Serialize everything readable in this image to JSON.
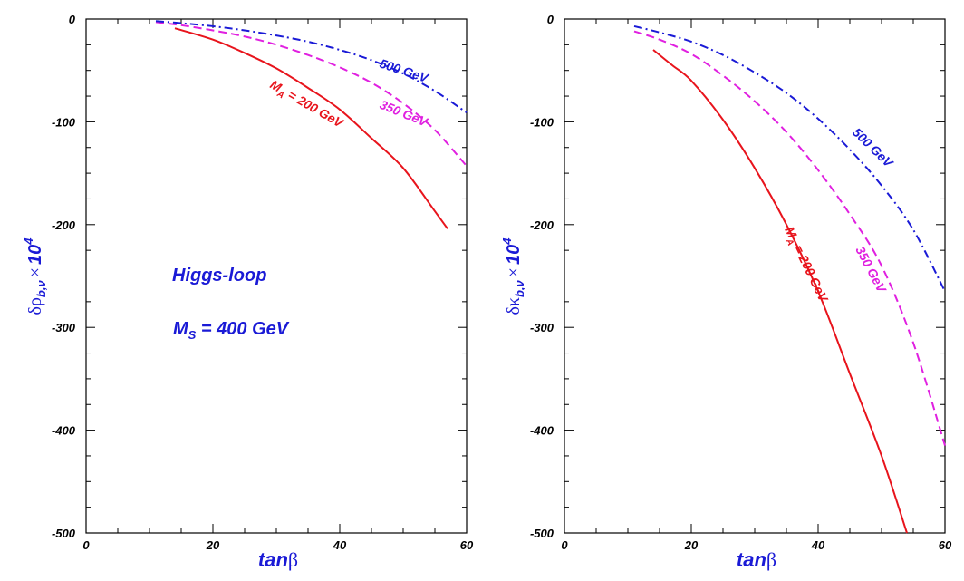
{
  "chart_data": [
    {
      "type": "line",
      "xlim": [
        0,
        60
      ],
      "ylim": [
        -500,
        0
      ],
      "x_ticks": [
        "0",
        "20",
        "40",
        "60"
      ],
      "y_ticks": [
        "0",
        "-100",
        "-200",
        "-300",
        "-400",
        "-500"
      ],
      "xlabel": {
        "italic": "tan",
        "greek": "β"
      },
      "ylabel": {
        "greek": "δρ",
        "sub": "b,ν",
        "times": "×",
        "pow_base": "10",
        "pow_exp": "4"
      },
      "annotations": {
        "line1": "Higgs-loop",
        "line2_main": "M",
        "line2_sub": "S",
        "line2_rest": " = 400 GeV"
      },
      "series": [
        {
          "name": "M_A = 200 GeV",
          "label_main": "M",
          "label_sub": "A",
          "label_rest": " = 200 GeV",
          "color": "#e8141c",
          "dash": "solid",
          "x": [
            14,
            20,
            25,
            30,
            35,
            40,
            45,
            50,
            55,
            57
          ],
          "y": [
            -9,
            -20,
            -33,
            -48,
            -67,
            -88,
            -116,
            -145,
            -187,
            -204
          ]
        },
        {
          "name": "350 GeV",
          "label": "350 GeV",
          "color": "#e020e0",
          "dash": "dash",
          "x": [
            11,
            15,
            20,
            25,
            30,
            35,
            40,
            45,
            50,
            55,
            60
          ],
          "y": [
            -3,
            -6,
            -11,
            -17,
            -25,
            -35,
            -47,
            -62,
            -82,
            -108,
            -143
          ]
        },
        {
          "name": "500 GeV",
          "label": "500 GeV",
          "color": "#1a1ad6",
          "dash": "dashdot",
          "x": [
            11,
            15,
            20,
            25,
            30,
            35,
            40,
            45,
            50,
            55,
            60
          ],
          "y": [
            -2,
            -4,
            -7,
            -11,
            -16,
            -22,
            -30,
            -40,
            -53,
            -70,
            -91
          ]
        }
      ]
    },
    {
      "type": "line",
      "xlim": [
        0,
        60
      ],
      "ylim": [
        -500,
        0
      ],
      "x_ticks": [
        "0",
        "20",
        "40",
        "60"
      ],
      "y_ticks": [
        "0",
        "-100",
        "-200",
        "-300",
        "-400",
        "-500"
      ],
      "xlabel": {
        "italic": "tan",
        "greek": "β"
      },
      "ylabel": {
        "greek": "δκ",
        "sub": "b,ν",
        "times": "×",
        "pow_base": "10",
        "pow_exp": "4"
      },
      "series": [
        {
          "name": "M_A = 200 GeV",
          "label_main": "M",
          "label_sub": "A",
          "label_rest": " = 200 GeV",
          "color": "#e8141c",
          "dash": "solid",
          "x": [
            14,
            17,
            20,
            25,
            30,
            35,
            40,
            45,
            50,
            54
          ],
          "y": [
            -30,
            -45,
            -60,
            -98,
            -145,
            -200,
            -265,
            -345,
            -425,
            -500
          ]
        },
        {
          "name": "350 GeV",
          "label": "350 GeV",
          "color": "#e020e0",
          "dash": "dash",
          "x": [
            11,
            15,
            20,
            25,
            30,
            35,
            40,
            45,
            50,
            55,
            60
          ],
          "y": [
            -12,
            -20,
            -34,
            -55,
            -80,
            -110,
            -147,
            -190,
            -240,
            -315,
            -415
          ]
        },
        {
          "name": "500 GeV",
          "label": "500 GeV",
          "color": "#1a1ad6",
          "dash": "dashdot",
          "x": [
            11,
            15,
            20,
            25,
            30,
            35,
            40,
            45,
            50,
            55,
            60
          ],
          "y": [
            -7,
            -13,
            -22,
            -35,
            -52,
            -72,
            -97,
            -127,
            -162,
            -205,
            -265
          ]
        }
      ]
    }
  ]
}
